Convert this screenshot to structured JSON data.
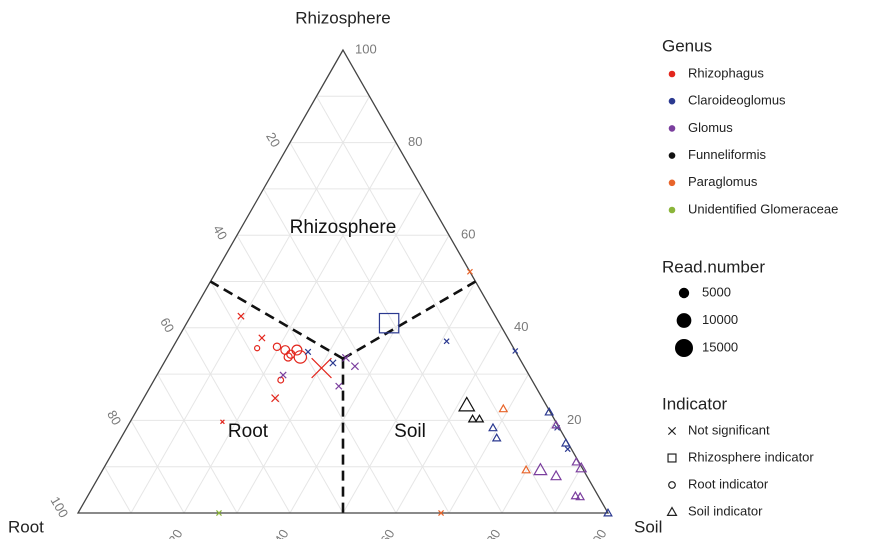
{
  "chart_data": {
    "type": "ternary",
    "axes": [
      {
        "name": "Rhizosphere",
        "ticks": [
          20,
          40,
          60,
          80,
          100
        ],
        "grid": [
          10,
          20,
          30,
          40,
          50,
          60,
          70,
          80,
          90
        ]
      },
      {
        "name": "Root",
        "ticks": [
          20,
          40,
          60,
          80,
          100
        ],
        "grid": [
          10,
          20,
          30,
          40,
          50,
          60,
          70,
          80,
          90
        ]
      },
      {
        "name": "Soil",
        "ticks": [
          20,
          40,
          60,
          80,
          100
        ],
        "grid": [
          10,
          20,
          30,
          40,
          50,
          60,
          70,
          80,
          90
        ]
      }
    ],
    "regions": [
      "Rhizosphere",
      "Root",
      "Soil"
    ],
    "genus_title": "Genus",
    "size_legend": {
      "title": "Read.number",
      "values": [
        5000,
        10000,
        15000
      ]
    },
    "indicator_legend": {
      "title": "Indicator",
      "items": [
        "Not significant",
        "Rhizosphere indicator",
        "Root indicator",
        "Soil indicator"
      ]
    },
    "series": [
      {
        "name": "Rhizophagus",
        "color": "#e3261d",
        "rhizosphere": [
          42.5,
          37.8,
          35.6,
          35.9,
          35.2,
          34.3,
          35.2,
          33.7,
          33.7,
          28.7,
          24.8,
          31.3,
          19.7
        ],
        "root": [
          48.0,
          46.4,
          48.4,
          44.5,
          43.3,
          42.7,
          41.1,
          41.2,
          43.5,
          47.4,
          50.4,
          38.4,
          62.9
        ],
        "soil": [
          9.5,
          15.8,
          16.0,
          19.6,
          21.5,
          23.0,
          23.7,
          25.1,
          22.8,
          23.9,
          24.8,
          30.3,
          17.4
        ],
        "read_number": [
          1500,
          1500,
          1200,
          2500,
          3500,
          3000,
          4500,
          7000,
          3000,
          1500,
          2000,
          15000,
          600
        ],
        "indicator": [
          "Not significant",
          "Not significant",
          "Root indicator",
          "Root indicator",
          "Root indicator",
          "Root indicator",
          "Root indicator",
          "Root indicator",
          "Root indicator",
          "Root indicator",
          "Not significant",
          "Not significant",
          "Not significant"
        ]
      },
      {
        "name": "Claroideoglomus",
        "color": "#2b3990",
        "rhizosphere": [
          41.0,
          37.1,
          35.0,
          34.8,
          32.4,
          21.8,
          18.4,
          16.2,
          18.4,
          15.1,
          13.8,
          0
        ],
        "root": [
          20.8,
          11.9,
          0,
          39.2,
          35.7,
          0.2,
          12.5,
          12.9,
          0.4,
          0.4,
          0.7,
          0
        ],
        "soil": [
          38.2,
          51.0,
          65.0,
          26.0,
          31.9,
          78.0,
          69.1,
          70.9,
          81.2,
          84.5,
          85.5,
          100
        ],
        "read_number": [
          12000,
          1000,
          1000,
          1200,
          1500,
          1500,
          1500,
          1500,
          1000,
          1500,
          1000,
          1500
        ],
        "indicator": [
          "Rhizosphere indicator",
          "Not significant",
          "Not significant",
          "Not significant",
          "Not significant",
          "Soil indicator",
          "Soil indicator",
          "Soil indicator",
          "Not significant",
          "Soil indicator",
          "Not significant",
          "Soil indicator"
        ]
      },
      {
        "name": "Glomus",
        "color": "#7b3f9e",
        "rhizosphere": [
          33.5,
          31.7,
          27.4,
          29.8,
          19.0,
          9.3,
          8.0,
          9.7,
          11.0,
          3.7,
          3.5
        ],
        "root": [
          32.7,
          31.9,
          37.1,
          46.4,
          0.3,
          8.1,
          5.8,
          0.2,
          0.5,
          4.3,
          3.5
        ],
        "soil": [
          33.8,
          36.4,
          35.5,
          23.8,
          80.7,
          82.6,
          86.2,
          90.1,
          88.5,
          92.0,
          93.0
        ],
        "read_number": [
          2000,
          2000,
          1500,
          1500,
          1500,
          4000,
          2500,
          2500,
          1500,
          1500,
          1500
        ],
        "indicator": [
          "Not significant",
          "Not significant",
          "Not significant",
          "Not significant",
          "Soil indicator",
          "Soil indicator",
          "Soil indicator",
          "Soil indicator",
          "Soil indicator",
          "Soil indicator",
          "Soil indicator"
        ]
      },
      {
        "name": "Funneliformis",
        "color": "#111111",
        "rhizosphere": [
          23.3,
          20.3,
          20.3
        ],
        "root": [
          15.0,
          15.4,
          14.1
        ],
        "soil": [
          61.7,
          64.3,
          65.6
        ],
        "read_number": [
          6000,
          1500,
          1500
        ],
        "indicator": [
          "Soil indicator",
          "Soil indicator",
          "Soil indicator"
        ]
      },
      {
        "name": "Paraglomus",
        "color": "#e8642a",
        "rhizosphere": [
          52.1,
          22.5,
          9.3,
          0
        ],
        "root": [
          0,
          8.5,
          10.8,
          31.5
        ],
        "soil": [
          47.9,
          69.0,
          79.9,
          68.5
        ],
        "read_number": [
          1000,
          1500,
          1500,
          1000
        ],
        "indicator": [
          "Not significant",
          "Soil indicator",
          "Soil indicator",
          "Not significant"
        ]
      },
      {
        "name": "Unidentified Glomeraceae",
        "color": "#8bb53a",
        "rhizosphere": [
          0
        ],
        "root": [
          73.4
        ],
        "soil": [
          26.6
        ],
        "read_number": [
          1000
        ],
        "indicator": [
          "Not significant"
        ]
      }
    ]
  }
}
